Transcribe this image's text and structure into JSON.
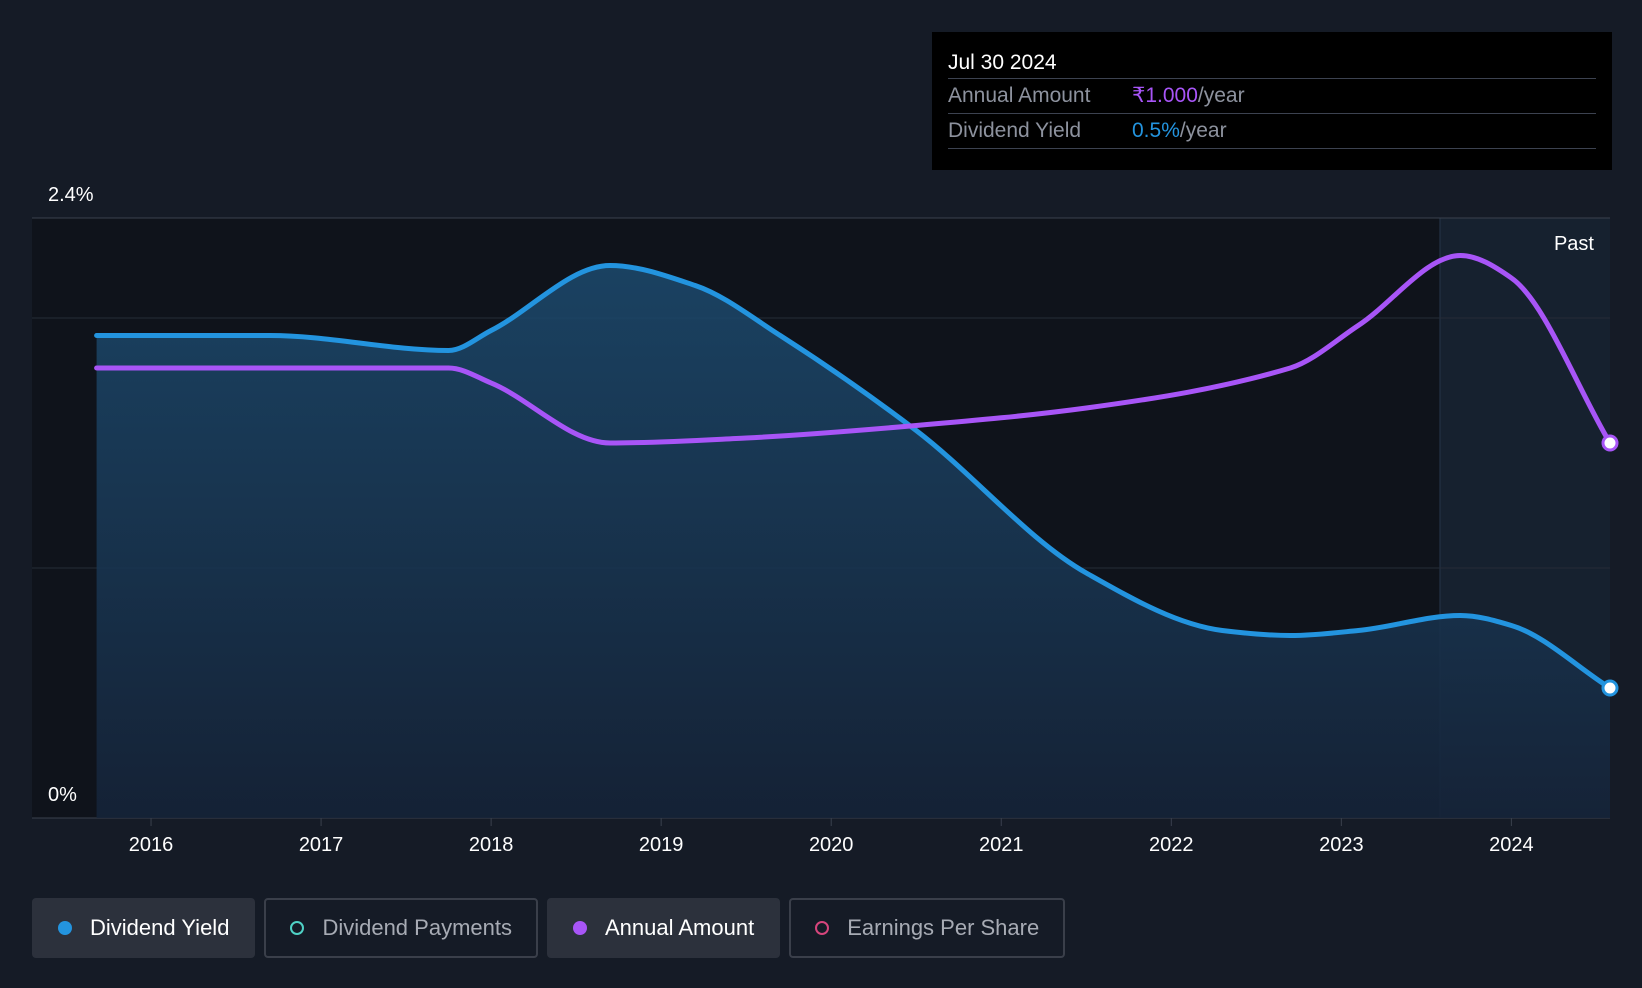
{
  "tooltip": {
    "date": "Jul 30 2024",
    "rows": [
      {
        "label": "Annual Amount",
        "value": "₹1.000",
        "unit": "/year",
        "color": "#a855f7"
      },
      {
        "label": "Dividend Yield",
        "value": "0.5%",
        "unit": "/year",
        "color": "#2394df"
      }
    ]
  },
  "legend": [
    {
      "label": "Dividend Yield",
      "color": "#2394df",
      "active": true
    },
    {
      "label": "Dividend Payments",
      "color": "#4fd1c5",
      "active": false
    },
    {
      "label": "Annual Amount",
      "color": "#a855f7",
      "active": true
    },
    {
      "label": "Earnings Per Share",
      "color": "#d6457c",
      "active": false
    }
  ],
  "chart_data": {
    "type": "line",
    "x_ticks": [
      "2016",
      "2017",
      "2018",
      "2019",
      "2020",
      "2021",
      "2022",
      "2023",
      "2024"
    ],
    "y_top_label": "2.4%",
    "y_bottom_label": "0%",
    "ylim": [
      0,
      2.4
    ],
    "past_label": "Past",
    "past_start": 2023.58,
    "x_range": [
      2015.3,
      2024.58
    ],
    "series": [
      {
        "name": "Dividend Yield",
        "color": "#2394df",
        "area": true,
        "points": [
          [
            2015.68,
            1.93
          ],
          [
            2016.7,
            1.93
          ],
          [
            2017.75,
            1.87
          ],
          [
            2018.0,
            1.95
          ],
          [
            2018.7,
            2.21
          ],
          [
            2019.2,
            2.13
          ],
          [
            2019.7,
            1.93
          ],
          [
            2020.5,
            1.55
          ],
          [
            2021.5,
            0.98
          ],
          [
            2022.3,
            0.75
          ],
          [
            2022.7,
            0.73
          ],
          [
            2023.1,
            0.75
          ],
          [
            2023.7,
            0.81
          ],
          [
            2024.0,
            0.77
          ],
          [
            2024.58,
            0.52
          ]
        ]
      },
      {
        "name": "Annual Amount",
        "color": "#a855f7",
        "area": false,
        "points": [
          [
            2015.68,
            1.8
          ],
          [
            2016.7,
            1.8
          ],
          [
            2017.75,
            1.8
          ],
          [
            2018.0,
            1.74
          ],
          [
            2018.7,
            1.5
          ],
          [
            2019.5,
            1.52
          ],
          [
            2020.5,
            1.57
          ],
          [
            2021.5,
            1.64
          ],
          [
            2022.7,
            1.8
          ],
          [
            2023.1,
            1.97
          ],
          [
            2023.7,
            2.25
          ],
          [
            2024.0,
            2.16
          ],
          [
            2024.58,
            1.5
          ]
        ]
      }
    ]
  }
}
